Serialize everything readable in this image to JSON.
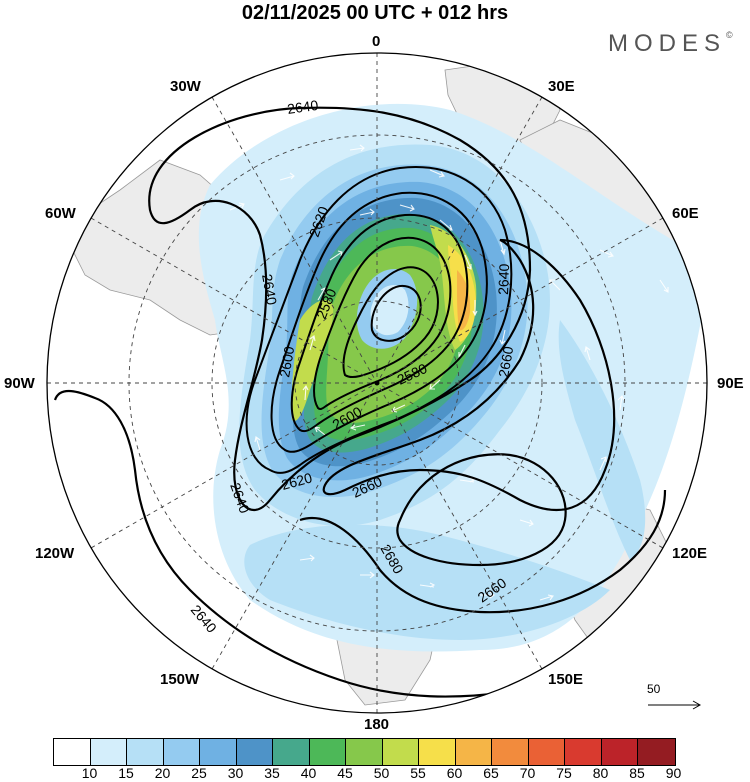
{
  "title": "02/11/2025  00 UTC  + 012 hrs",
  "brand": {
    "text": "MODES",
    "mark": "©"
  },
  "longitude_labels": {
    "deg0": "0",
    "deg30e": "30E",
    "deg60e": "60E",
    "deg90e": "90E",
    "deg120e": "120E",
    "deg150e": "150E",
    "deg180": "180",
    "deg150w": "150W",
    "deg120w": "120W",
    "deg90w": "90W",
    "deg60w": "60W",
    "deg30w": "30W"
  },
  "contour_labels": {
    "c2640a": "2640",
    "c2640b": "2640",
    "c2640c": "2640",
    "c2640d": "2640",
    "c2640e": "2640",
    "c2620a": "2620",
    "c2620b": "2620",
    "c2600a": "2600",
    "c2600b": "2600",
    "c2580a": "2580",
    "c2580b": "2580",
    "c2660a": "2660",
    "c2660b": "2660",
    "c2660c": "2660",
    "c2680a": "2680"
  },
  "reference_vector": {
    "label": "50"
  },
  "colorbar": {
    "labels": [
      "10",
      "15",
      "20",
      "25",
      "30",
      "35",
      "40",
      "45",
      "50",
      "55",
      "60",
      "65",
      "70",
      "75",
      "80",
      "85",
      "90"
    ],
    "colors": [
      "#ffffff",
      "#d4eefb",
      "#b6e0f6",
      "#94cbf0",
      "#6fb1e3",
      "#4e93c8",
      "#46a88c",
      "#4db858",
      "#86c84b",
      "#c2dc4c",
      "#f6df4a",
      "#f5b547",
      "#f28b3d",
      "#ea6135",
      "#d93a2f",
      "#bc2329",
      "#941c22"
    ]
  },
  "map_colors": {
    "land": "#ececec",
    "coast": "#9a9a9a",
    "contour": "#000000",
    "grid": "#444444"
  }
}
